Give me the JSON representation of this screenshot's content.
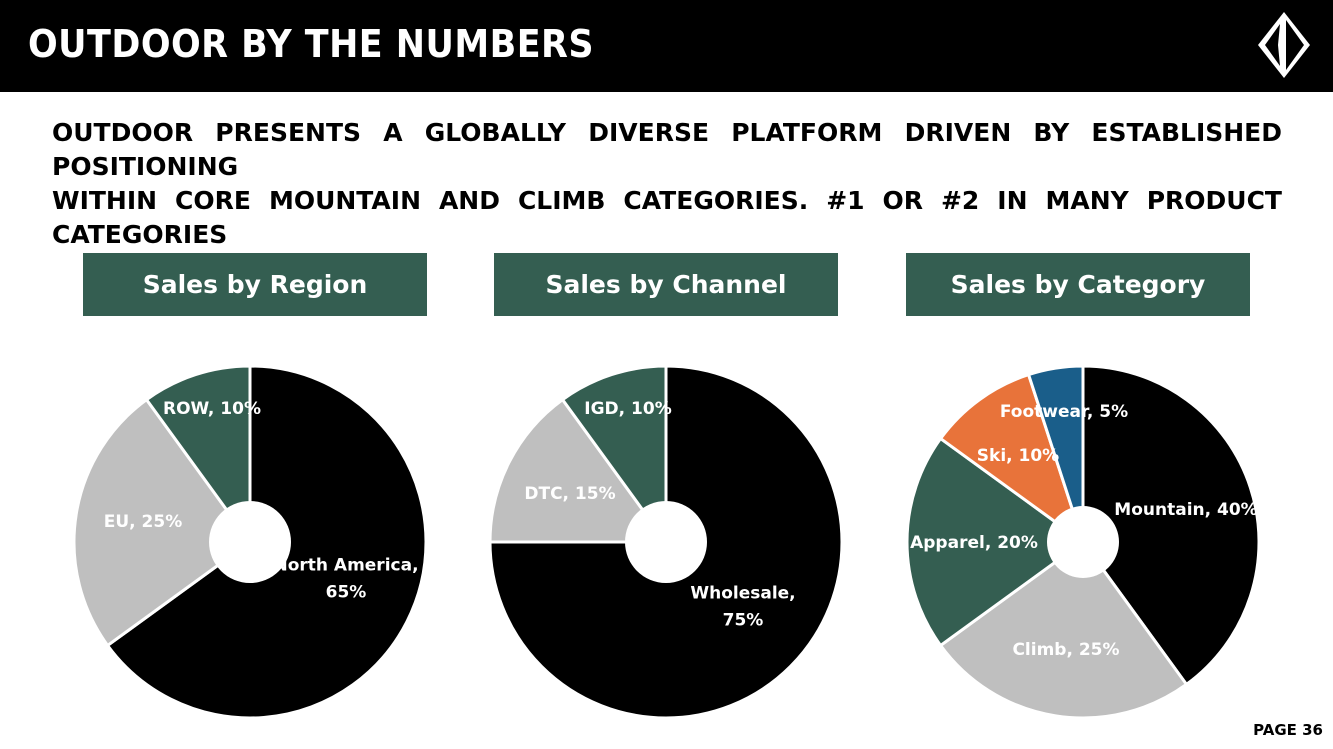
{
  "header": {
    "title": "OUTDOOR BY THE NUMBERS"
  },
  "headline": {
    "line1": "OUTDOOR PRESENTS A GLOBALLY DIVERSE PLATFORM DRIVEN BY ESTABLISHED POSITIONING",
    "line2": "WITHIN CORE MOUNTAIN AND CLIMB CATEGORIES.  #1 OR #2 IN MANY PRODUCT CATEGORIES"
  },
  "page": {
    "label": "PAGE 36"
  },
  "colors": {
    "header_bg": "#000000",
    "label_box_bg": "#345e51",
    "black": "#000000",
    "gray": "#bfbfbf",
    "green": "#345e51",
    "orange": "#e8733a",
    "blue": "#1a5e8a"
  },
  "chart_data": [
    {
      "type": "pie",
      "title": "Sales by Region",
      "slices": [
        {
          "label": "North America",
          "value": 65,
          "label_text": [
            "North America,",
            "65%"
          ],
          "color": "#000000"
        },
        {
          "label": "EU",
          "value": 25,
          "label_text": [
            "EU, 25%"
          ],
          "color": "#bfbfbf"
        },
        {
          "label": "ROW",
          "value": 10,
          "label_text": [
            "ROW, 10%"
          ],
          "color": "#345e51"
        }
      ]
    },
    {
      "type": "pie",
      "title": "Sales by Channel",
      "slices": [
        {
          "label": "Wholesale",
          "value": 75,
          "label_text": [
            "Wholesale,",
            "75%"
          ],
          "color": "#000000"
        },
        {
          "label": "DTC",
          "value": 15,
          "label_text": [
            "DTC, 15%"
          ],
          "color": "#bfbfbf"
        },
        {
          "label": "IGD",
          "value": 10,
          "label_text": [
            "IGD, 10%"
          ],
          "color": "#345e51"
        }
      ]
    },
    {
      "type": "pie",
      "title": "Sales by Category",
      "slices": [
        {
          "label": "Mountain",
          "value": 40,
          "label_text": [
            "Mountain, 40%"
          ],
          "color": "#000000"
        },
        {
          "label": "Climb",
          "value": 25,
          "label_text": [
            "Climb, 25%"
          ],
          "color": "#bfbfbf"
        },
        {
          "label": "Apparel",
          "value": 20,
          "label_text": [
            "Apparel, 20%"
          ],
          "color": "#345e51"
        },
        {
          "label": "Ski",
          "value": 10,
          "label_text": [
            "Ski, 10%"
          ],
          "color": "#e8733a"
        },
        {
          "label": "Footwear",
          "value": 5,
          "label_text": [
            "Footwear, 5%"
          ],
          "color": "#1a5e8a"
        }
      ]
    }
  ]
}
